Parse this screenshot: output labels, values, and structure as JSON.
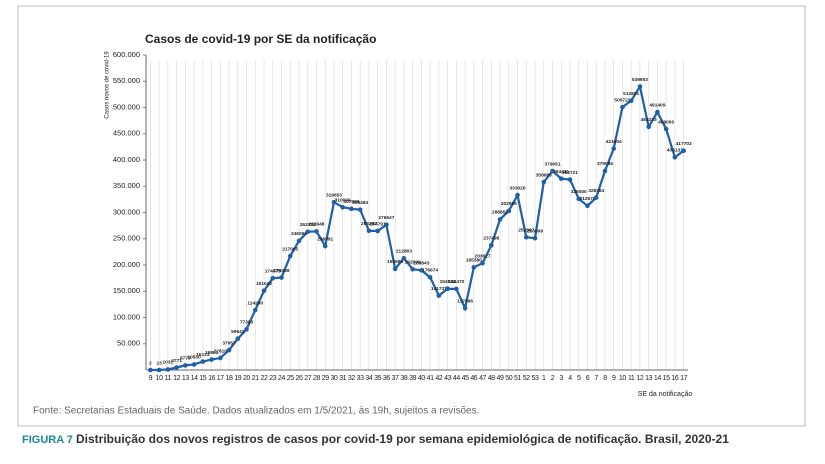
{
  "chart_data": {
    "type": "line",
    "title": "Casos de covid-19 por SE da notificação",
    "y_label": "Casos novos de covid-19",
    "x_label": "SE da notificação",
    "categories": [
      "9",
      "10",
      "11",
      "12",
      "13",
      "14",
      "15",
      "16",
      "17",
      "18",
      "19",
      "20",
      "21",
      "22",
      "23",
      "24",
      "25",
      "26",
      "27",
      "28",
      "29",
      "30",
      "31",
      "32",
      "33",
      "34",
      "35",
      "36",
      "37",
      "38",
      "39",
      "40",
      "41",
      "42",
      "43",
      "44",
      "45",
      "46",
      "47",
      "48",
      "49",
      "50",
      "51",
      "52",
      "53",
      "1",
      "2",
      "3",
      "4",
      "5",
      "6",
      "7",
      "8",
      "9",
      "10",
      "11",
      "12",
      "13",
      "14",
      "15",
      "16",
      "17"
    ],
    "values": [
      2,
      13,
      1031,
      4771,
      8779,
      10550,
      16123,
      19861,
      22810,
      37957,
      59643,
      77393,
      114290,
      151042,
      174875,
      176088,
      217065,
      246066,
      263332,
      263948,
      236091,
      319653,
      310000,
      307000,
      305484,
      265257,
      264791,
      276647,
      192689,
      212863,
      192000,
      189843,
      176674,
      141731,
      154832,
      154470,
      117896,
      195380,
      203627,
      237498,
      286858,
      302956,
      333026,
      252867,
      250999,
      358083,
      379061,
      364431,
      362721,
      326000,
      312670,
      328384,
      379086,
      421604,
      500722,
      512801,
      539903,
      463233,
      491409,
      459000,
      405131,
      417702
    ],
    "color": "#1f5fa8",
    "ylim": [
      0,
      600000
    ],
    "yticks": [
      {
        "value": 50000,
        "label": "50.000"
      },
      {
        "value": 100000,
        "label": "100.000"
      },
      {
        "value": 150000,
        "label": "150.000"
      },
      {
        "value": 200000,
        "label": "200.000"
      },
      {
        "value": 250000,
        "label": "250.000"
      },
      {
        "value": 300000,
        "label": "300.000"
      },
      {
        "value": 350000,
        "label": "350.000"
      },
      {
        "value": 400000,
        "label": "400.000"
      },
      {
        "value": 450000,
        "label": "450.000"
      },
      {
        "value": 500000,
        "label": "500.000"
      },
      {
        "value": 550000,
        "label": "550.000"
      },
      {
        "value": 600000,
        "label": "600.000"
      }
    ],
    "grid": true
  },
  "source": "Fonte: Secretarias Estaduais de Saúde. Dados atualizados em 1/5/2021, às 19h, sujeitos a revisões.",
  "figure_label": "FIGURA 7",
  "caption": "Distribuição dos novos registros de casos por covid-19 por semana epidemiológica de notificação. Brasil, 2020-21"
}
